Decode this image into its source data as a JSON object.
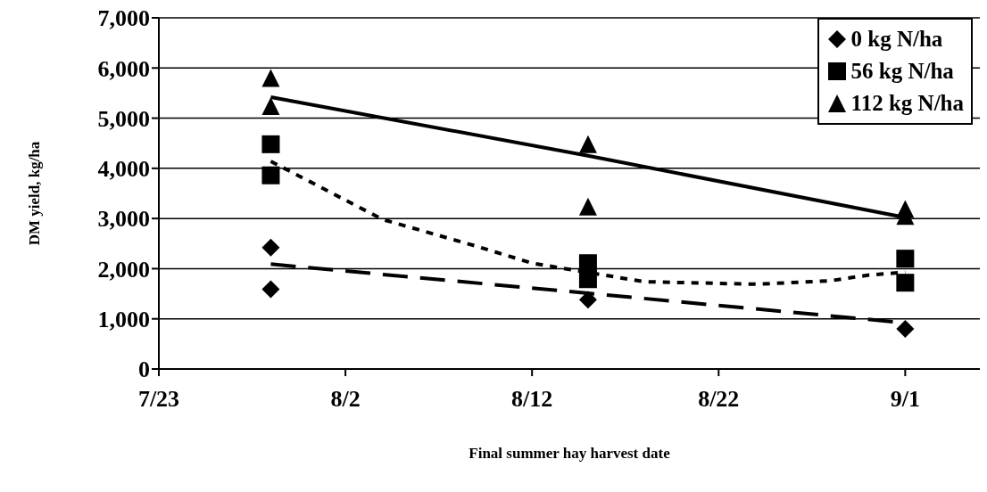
{
  "chart_data": {
    "type": "scatter",
    "xlabel": "Final summer hay harvest date",
    "ylabel": "DM yield, kg/ha",
    "xlim": [
      "--07-23",
      "--09-05"
    ],
    "xticks": [
      {
        "value": "--07-23",
        "label": "7/23"
      },
      {
        "value": "--08-02",
        "label": "8/2"
      },
      {
        "value": "--08-12",
        "label": "8/12"
      },
      {
        "value": "--08-22",
        "label": "8/22"
      },
      {
        "value": "--09-01",
        "label": "9/1"
      }
    ],
    "ylim": [
      0,
      7000
    ],
    "yticks": [
      0,
      {
        "value": 1000,
        "label": "1,000"
      },
      {
        "value": 2000,
        "label": "2,000"
      },
      {
        "value": 3000,
        "label": "3,000"
      },
      {
        "value": 4000,
        "label": "4,000"
      },
      {
        "value": 5000,
        "label": "5,000"
      },
      {
        "value": 6000,
        "label": "6,000"
      },
      {
        "value": 7000,
        "label": "7,000"
      }
    ],
    "grid": "y",
    "legend": "top right",
    "series": [
      {
        "name": "0 kg N/ha",
        "color": "#000000",
        "marker": "diamond",
        "x": [
          "--07-29",
          "--07-29",
          "--08-15",
          "--09-01"
        ],
        "values": [
          2420,
          1590,
          1380,
          800
        ]
      },
      {
        "name": "56 kg N/ha",
        "color": "#000000",
        "marker": "square",
        "x": [
          "--07-29",
          "--07-29",
          "--08-15",
          "--08-15",
          "--09-01",
          "--09-01"
        ],
        "values": [
          4480,
          3860,
          2110,
          1790,
          2200,
          1720
        ]
      },
      {
        "name": "112 kg N/ha",
        "color": "#000000",
        "marker": "triangle",
        "x": [
          "--07-29",
          "--07-29",
          "--08-15",
          "--08-15",
          "--09-01",
          "--09-01"
        ],
        "values": [
          5800,
          5240,
          4480,
          3240,
          3190,
          3050
        ]
      },
      {
        "type": "line",
        "color": "#000000",
        "line_style": "dashed",
        "marker": "none",
        "x": [
          "--07-29",
          "--08-15",
          "--09-01"
        ],
        "values": [
          2090,
          1510,
          920
        ]
      },
      {
        "type": "line",
        "color": "#000000",
        "line_style": "dotted",
        "marker": "none",
        "x": [
          "--07-29",
          "--08-04",
          "--08-09",
          "--08-12",
          "--08-18",
          "--08-24",
          "--08-28",
          "--08-30",
          "--09-01"
        ],
        "values": [
          4140,
          2980,
          2450,
          2110,
          1740,
          1690,
          1760,
          1870,
          1930
        ]
      },
      {
        "type": "line",
        "color": "#000000",
        "line_style": "solid",
        "marker": "none",
        "x": [
          "--07-29",
          "--08-15",
          "--09-01"
        ],
        "values": [
          5420,
          4250,
          3020
        ]
      }
    ]
  }
}
